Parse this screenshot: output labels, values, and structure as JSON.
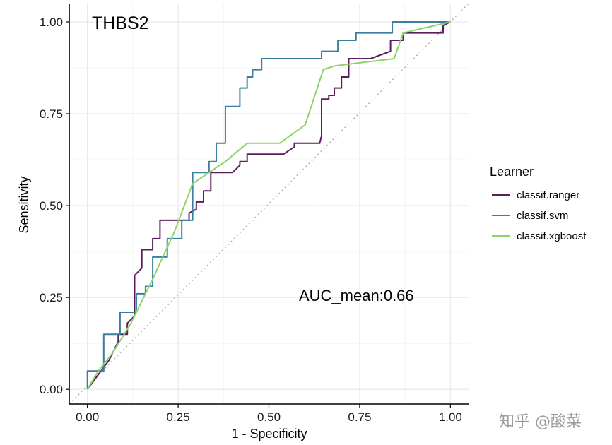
{
  "chart_data": {
    "type": "line",
    "title": "THBS2",
    "xlabel": "1 - Specificity",
    "ylabel": "Sensitivity",
    "xlim": [
      -0.05,
      1.05
    ],
    "ylim": [
      -0.04,
      1.05
    ],
    "x_ticks": [
      0,
      0.25,
      0.5,
      0.75,
      1
    ],
    "y_ticks": [
      0,
      0.25,
      0.5,
      0.75,
      1
    ],
    "x_tick_labels": [
      "0.00",
      "0.25",
      "0.50",
      "0.75",
      "1.00"
    ],
    "y_tick_labels": [
      "0.00",
      "0.25",
      "0.50",
      "0.75",
      "1.00"
    ],
    "grid": true,
    "legend": {
      "title": "Learner",
      "position": "right"
    },
    "annotation": "AUC_mean:0.66",
    "series": [
      {
        "name": "classif.ranger",
        "color": "#5a1e5e",
        "x": [
          0,
          0.03,
          0.06,
          0.085,
          0.085,
          0.11,
          0.11,
          0.13,
          0.13,
          0.15,
          0.15,
          0.18,
          0.18,
          0.2,
          0.2,
          0.28,
          0.28,
          0.3,
          0.3,
          0.32,
          0.32,
          0.34,
          0.34,
          0.4,
          0.42,
          0.42,
          0.44,
          0.44,
          0.54,
          0.54,
          0.57,
          0.57,
          0.64,
          0.645,
          0.645,
          0.665,
          0.665,
          0.68,
          0.68,
          0.7,
          0.7,
          0.72,
          0.72,
          0.78,
          0.78,
          0.835,
          0.835,
          0.87,
          0.87,
          0.98,
          0.98,
          1.0
        ],
        "y": [
          0,
          0.04,
          0.08,
          0.13,
          0.15,
          0.15,
          0.18,
          0.2,
          0.31,
          0.33,
          0.38,
          0.38,
          0.41,
          0.41,
          0.46,
          0.46,
          0.48,
          0.49,
          0.51,
          0.51,
          0.54,
          0.54,
          0.59,
          0.59,
          0.61,
          0.62,
          0.62,
          0.64,
          0.64,
          0.64,
          0.66,
          0.67,
          0.67,
          0.69,
          0.79,
          0.79,
          0.8,
          0.8,
          0.82,
          0.82,
          0.85,
          0.85,
          0.9,
          0.9,
          0.9,
          0.92,
          0.95,
          0.95,
          0.97,
          0.97,
          0.99,
          1.0
        ]
      },
      {
        "name": "classif.svm",
        "color": "#3b7f9f",
        "x": [
          0,
          0,
          0.045,
          0.045,
          0.09,
          0.09,
          0.135,
          0.135,
          0.16,
          0.16,
          0.18,
          0.18,
          0.22,
          0.22,
          0.26,
          0.26,
          0.29,
          0.29,
          0.335,
          0.335,
          0.355,
          0.355,
          0.38,
          0.38,
          0.42,
          0.42,
          0.44,
          0.44,
          0.455,
          0.455,
          0.48,
          0.48,
          0.51,
          0.51,
          0.645,
          0.645,
          0.69,
          0.69,
          0.74,
          0.74,
          0.84,
          0.84,
          0.88,
          0.88,
          1.0
        ],
        "y": [
          0,
          0.05,
          0.05,
          0.15,
          0.15,
          0.21,
          0.21,
          0.26,
          0.26,
          0.28,
          0.28,
          0.36,
          0.36,
          0.41,
          0.41,
          0.46,
          0.46,
          0.59,
          0.59,
          0.62,
          0.62,
          0.67,
          0.67,
          0.77,
          0.77,
          0.82,
          0.82,
          0.85,
          0.85,
          0.87,
          0.87,
          0.9,
          0.9,
          0.9,
          0.9,
          0.92,
          0.92,
          0.95,
          0.95,
          0.97,
          0.97,
          1.0,
          1.0,
          1.0,
          1.0
        ]
      },
      {
        "name": "classif.xgboost",
        "color": "#8cd46a",
        "x": [
          0,
          0.03,
          0.07,
          0.12,
          0.18,
          0.24,
          0.29,
          0.38,
          0.44,
          0.53,
          0.6,
          0.65,
          0.68,
          0.76,
          0.845,
          0.87,
          1.0
        ],
        "y": [
          0,
          0.05,
          0.1,
          0.18,
          0.3,
          0.43,
          0.56,
          0.62,
          0.67,
          0.67,
          0.72,
          0.87,
          0.88,
          0.89,
          0.9,
          0.97,
          1.0
        ]
      }
    ]
  },
  "watermark": "知乎 @酸菜"
}
